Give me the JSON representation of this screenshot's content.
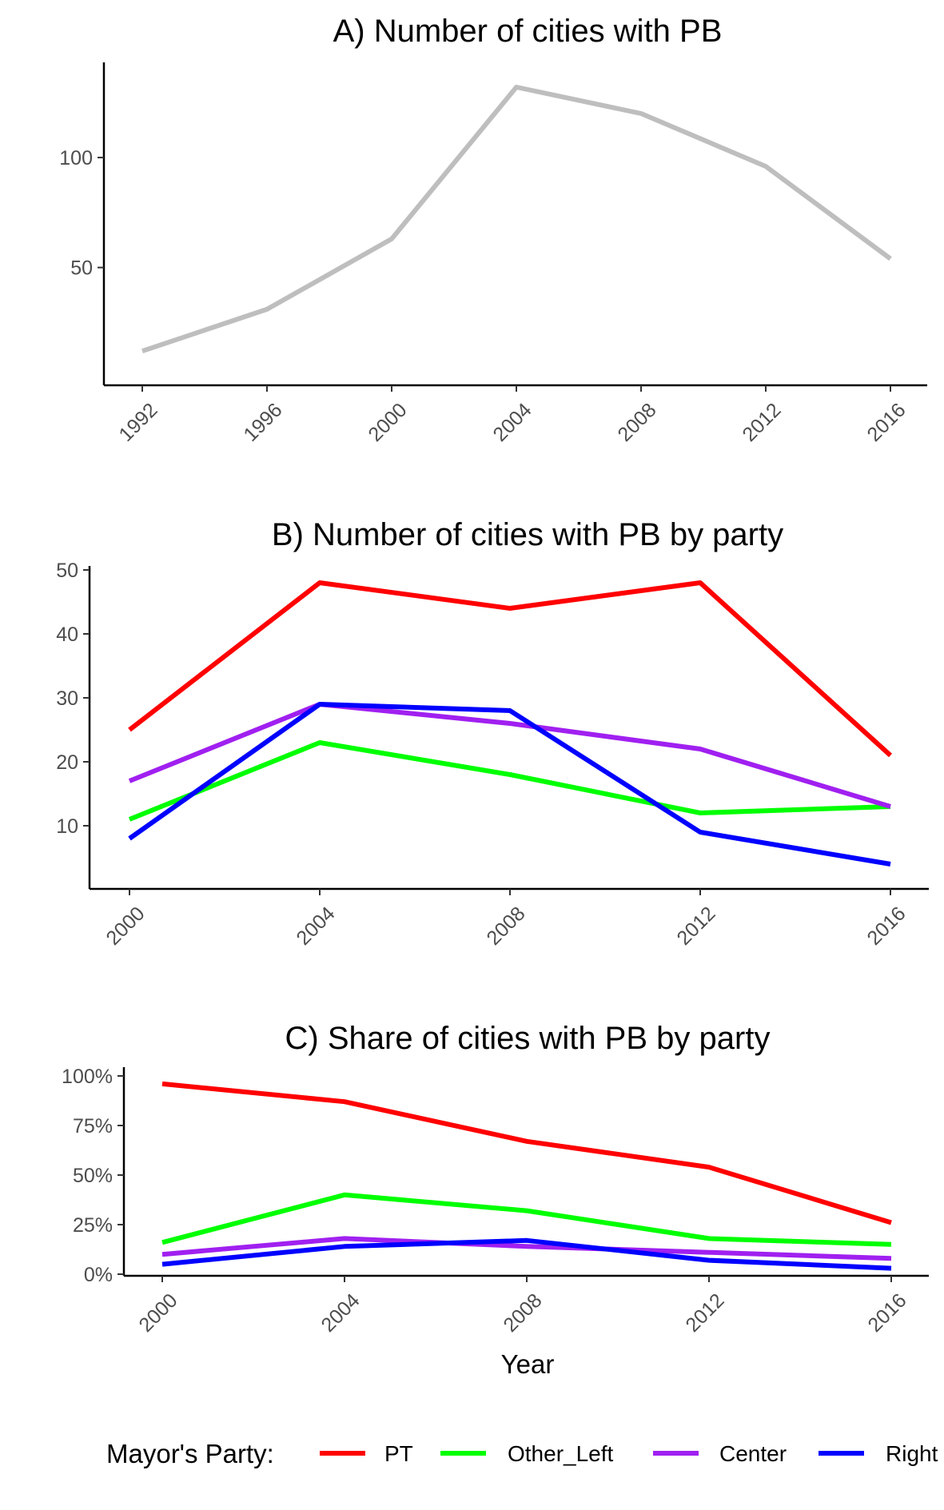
{
  "chart_data": [
    {
      "type": "line",
      "title": "A) Number of cities with PB",
      "xlabel": "",
      "ylabel": "",
      "x": [
        1992,
        1996,
        2000,
        2004,
        2008,
        2012,
        2016
      ],
      "x_tick_labels": [
        "1992",
        "1996",
        "2000",
        "2004",
        "2008",
        "2012",
        "2016"
      ],
      "y_ticks": [
        50,
        100
      ],
      "y_tick_labels": [
        "50",
        "100"
      ],
      "ylim": [
        3,
        136
      ],
      "series": [
        {
          "color": "#bebebe",
          "values": [
            12,
            31,
            63,
            132,
            120,
            96,
            54
          ]
        }
      ],
      "grid": false
    },
    {
      "type": "line",
      "title": "B) Number of cities with PB by party",
      "xlabel": "",
      "ylabel": "",
      "x": [
        2000,
        2004,
        2008,
        2012,
        2016
      ],
      "x_tick_labels": [
        "2000",
        "2004",
        "2008",
        "2012",
        "2016"
      ],
      "y_ticks": [
        10,
        20,
        30,
        40,
        50
      ],
      "y_tick_labels": [
        "10",
        "20",
        "30",
        "40",
        "50"
      ],
      "ylim": [
        2,
        50
      ],
      "series": [
        {
          "name": "PT",
          "color": "#ff0000",
          "values": [
            25,
            48,
            44,
            48,
            21
          ]
        },
        {
          "name": "Other_Left",
          "color": "#00ff00",
          "values": [
            11,
            23,
            18,
            12,
            13
          ]
        },
        {
          "name": "Center",
          "color": "#a020f0",
          "values": [
            17,
            29,
            26,
            22,
            13
          ]
        },
        {
          "name": "Right",
          "color": "#0000ff",
          "values": [
            8,
            29,
            28,
            9,
            4
          ]
        }
      ],
      "grid": false
    },
    {
      "type": "line",
      "title": "C) Share of cities with PB by party",
      "xlabel": "Year",
      "ylabel": "",
      "x": [
        2000,
        2004,
        2008,
        2012,
        2016
      ],
      "x_tick_labels": [
        "2000",
        "2004",
        "2008",
        "2012",
        "2016"
      ],
      "y_ticks": [
        0,
        0.25,
        0.5,
        0.75,
        1.0
      ],
      "y_tick_labels": [
        "0%",
        "25%",
        "50%",
        "75%",
        "100%"
      ],
      "ylim": [
        0,
        1.0
      ],
      "series": [
        {
          "name": "PT",
          "color": "#ff0000",
          "values": [
            0.96,
            0.87,
            0.67,
            0.54,
            0.26
          ]
        },
        {
          "name": "Other_Left",
          "color": "#00ff00",
          "values": [
            0.16,
            0.4,
            0.32,
            0.18,
            0.15
          ]
        },
        {
          "name": "Center",
          "color": "#a020f0",
          "values": [
            0.1,
            0.18,
            0.14,
            0.11,
            0.08
          ]
        },
        {
          "name": "Right",
          "color": "#0000ff",
          "values": [
            0.05,
            0.14,
            0.17,
            0.07,
            0.03
          ]
        }
      ],
      "grid": false
    }
  ],
  "legend": {
    "title": "Mayor's Party:",
    "position": "bottom",
    "items": [
      {
        "label": "PT",
        "color": "#ff0000"
      },
      {
        "label": "Other_Left",
        "color": "#00ff00"
      },
      {
        "label": "Center",
        "color": "#a020f0"
      },
      {
        "label": "Right",
        "color": "#0000ff"
      }
    ]
  }
}
